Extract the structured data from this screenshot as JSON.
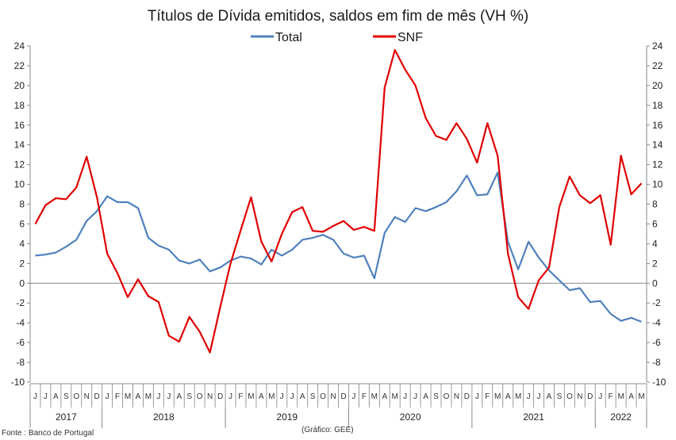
{
  "chart_data": {
    "type": "line",
    "title": "Títulos de Dívida emitidos, saldos em fim de mês  (VH %)",
    "source": "Fonte : Banco de Portugal",
    "credit": "(Gráfico: GEE)",
    "ylim": [
      -10,
      24
    ],
    "yticks": [
      -10,
      -8,
      -6,
      -4,
      -2,
      0,
      2,
      4,
      6,
      8,
      10,
      12,
      14,
      16,
      18,
      20,
      22,
      24
    ],
    "legend_position": "top-center",
    "grid": false,
    "month_labels": [
      "J",
      "J",
      "A",
      "S",
      "O",
      "N",
      "D",
      "J",
      "F",
      "M",
      "A",
      "M",
      "J",
      "J",
      "A",
      "S",
      "O",
      "N",
      "D",
      "J",
      "F",
      "M",
      "A",
      "M",
      "J",
      "J",
      "A",
      "S",
      "O",
      "N",
      "D",
      "J",
      "F",
      "M",
      "A",
      "M",
      "J",
      "J",
      "A",
      "S",
      "O",
      "N",
      "D",
      "J",
      "F",
      "M",
      "A",
      "M",
      "J",
      "J",
      "A",
      "S",
      "O",
      "N",
      "D",
      "J",
      "F",
      "M",
      "A",
      "M"
    ],
    "years": [
      {
        "label": "2017",
        "start": 0,
        "end": 6
      },
      {
        "label": "2018",
        "start": 7,
        "end": 18
      },
      {
        "label": "2019",
        "start": 19,
        "end": 30
      },
      {
        "label": "2020",
        "start": 31,
        "end": 42
      },
      {
        "label": "2021",
        "start": 43,
        "end": 54
      },
      {
        "label": "2022",
        "start": 55,
        "end": 59
      }
    ],
    "series": [
      {
        "name": "Total",
        "color": "#4f81bd",
        "values": [
          2.8,
          2.9,
          3.1,
          3.7,
          4.4,
          6.3,
          7.3,
          8.8,
          8.2,
          8.2,
          7.6,
          4.6,
          3.8,
          3.4,
          2.3,
          2.0,
          2.4,
          1.2,
          1.6,
          2.3,
          2.7,
          2.5,
          1.9,
          3.4,
          2.8,
          3.4,
          4.4,
          4.6,
          4.9,
          4.4,
          3.0,
          2.6,
          2.8,
          0.5,
          5.1,
          6.7,
          6.2,
          7.6,
          7.3,
          7.7,
          8.2,
          9.3,
          10.9,
          8.9,
          9.0,
          11.2,
          4.2,
          1.4,
          4.2,
          2.6,
          1.3,
          0.3,
          -0.7,
          -0.5,
          -1.9,
          -1.8,
          -3.1,
          -3.8,
          -3.5,
          -3.9
        ]
      },
      {
        "name": "SNF",
        "color": "#e00000",
        "values": [
          6.0,
          7.9,
          8.6,
          8.5,
          9.7,
          12.8,
          8.7,
          3.0,
          1.0,
          -1.4,
          0.4,
          -1.3,
          -1.9,
          -5.3,
          -5.9,
          -3.4,
          -4.9,
          -7.0,
          -2.4,
          2.0,
          5.4,
          8.7,
          4.2,
          2.2,
          5.0,
          7.2,
          7.7,
          5.3,
          5.2,
          5.8,
          6.3,
          5.4,
          5.7,
          5.3,
          19.8,
          23.6,
          21.6,
          20.0,
          16.7,
          14.9,
          14.5,
          16.2,
          14.6,
          12.2,
          16.2,
          12.9,
          3.0,
          -1.4,
          -2.6,
          0.3,
          1.6,
          7.7,
          10.8,
          8.9,
          8.1,
          8.9,
          3.9,
          12.9,
          9.0,
          10.1
        ]
      }
    ]
  }
}
